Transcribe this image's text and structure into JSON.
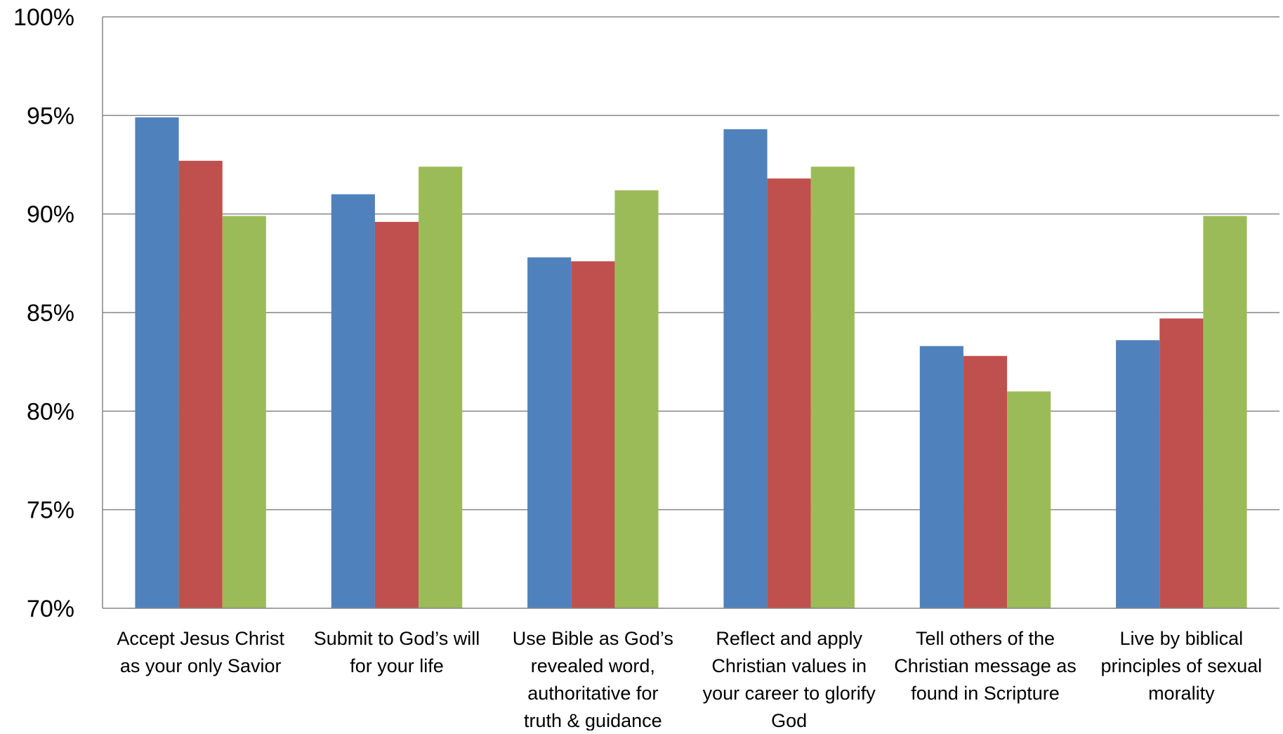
{
  "chart_data": {
    "type": "bar",
    "title": "",
    "xlabel": "",
    "ylabel": "",
    "ylim": [
      0.7,
      1.0
    ],
    "yticks": [
      0.7,
      0.75,
      0.8,
      0.85,
      0.9,
      0.95,
      1.0
    ],
    "ytick_labels": [
      "70%",
      "75%",
      "80%",
      "85%",
      "90%",
      "95%",
      "100%"
    ],
    "grid": true,
    "legend": "none",
    "categories": [
      [
        "Accept Jesus Christ",
        "as your only Savior"
      ],
      [
        "Submit to God’s will",
        "for your life"
      ],
      [
        "Use Bible as God’s",
        "revealed word,",
        "authoritative for",
        "truth & guidance"
      ],
      [
        "Reflect and apply",
        "Christian values in",
        "your career to glorify",
        "God"
      ],
      [
        "Tell others of the",
        "Christian message as",
        "found in Scripture"
      ],
      [
        "Live by biblical",
        "principles of sexual",
        "morality"
      ]
    ],
    "series": [
      {
        "color": "#4F81BD",
        "values": [
          0.949,
          0.91,
          0.878,
          0.943,
          0.833,
          0.836
        ]
      },
      {
        "color": "#C0504D",
        "values": [
          0.927,
          0.896,
          0.876,
          0.918,
          0.828,
          0.847
        ]
      },
      {
        "color": "#9BBB59",
        "values": [
          0.899,
          0.924,
          0.912,
          0.924,
          0.81,
          0.899
        ]
      }
    ]
  },
  "colors": {
    "axis": "#868686",
    "grid": "#868686",
    "text": "#000000"
  }
}
